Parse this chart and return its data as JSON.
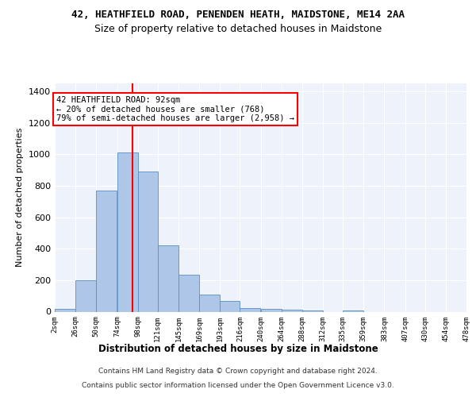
{
  "title1": "42, HEATHFIELD ROAD, PENENDEN HEATH, MAIDSTONE, ME14 2AA",
  "title2": "Size of property relative to detached houses in Maidstone",
  "xlabel": "Distribution of detached houses by size in Maidstone",
  "ylabel": "Number of detached properties",
  "footer1": "Contains HM Land Registry data © Crown copyright and database right 2024.",
  "footer2": "Contains public sector information licensed under the Open Government Licence v3.0.",
  "annotation_line1": "42 HEATHFIELD ROAD: 92sqm",
  "annotation_line2": "← 20% of detached houses are smaller (768)",
  "annotation_line3": "79% of semi-detached houses are larger (2,958) →",
  "bin_edges": [
    2,
    26,
    50,
    74,
    98,
    121,
    145,
    169,
    193,
    216,
    240,
    264,
    288,
    312,
    335,
    359,
    383,
    407,
    430,
    454,
    478
  ],
  "bar_heights": [
    20,
    200,
    770,
    1010,
    890,
    420,
    235,
    110,
    70,
    25,
    20,
    15,
    10,
    0,
    10,
    0,
    0,
    0,
    0,
    0
  ],
  "bar_color": "#aec6e8",
  "bar_edge_color": "#5a8fc2",
  "vline_x": 92,
  "vline_color": "red",
  "ylim_max": 1450,
  "yticks": [
    0,
    200,
    400,
    600,
    800,
    1000,
    1200,
    1400
  ],
  "bg_color": "#eef2fb",
  "grid_color": "#ffffff",
  "tick_labels": [
    "2sqm",
    "26sqm",
    "50sqm",
    "74sqm",
    "98sqm",
    "121sqm",
    "145sqm",
    "169sqm",
    "193sqm",
    "216sqm",
    "240sqm",
    "264sqm",
    "288sqm",
    "312sqm",
    "335sqm",
    "359sqm",
    "383sqm",
    "407sqm",
    "430sqm",
    "454sqm",
    "478sqm"
  ]
}
